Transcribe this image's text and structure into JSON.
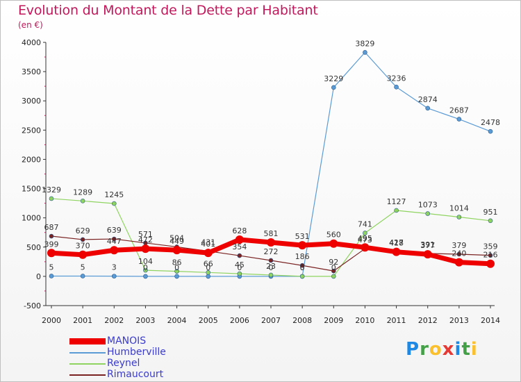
{
  "header": {
    "title": "Evolution du Montant de la Dette par Habitant",
    "unit": "(en €)"
  },
  "brand": {
    "text": "Proxiti"
  },
  "chart_data": {
    "type": "line",
    "categories": [
      "2000",
      "2001",
      "2002",
      "2003",
      "2004",
      "2005",
      "2006",
      "2007",
      "2008",
      "2009",
      "2010",
      "2011",
      "2012",
      "2013",
      "2014"
    ],
    "ylim": [
      -500,
      4000
    ],
    "yticks": [
      -500,
      0,
      500,
      1000,
      1500,
      2000,
      2500,
      3000,
      3500,
      4000
    ],
    "legend_position": "bottom-left",
    "series": [
      {
        "name": "MANOIS",
        "color": "#ee0000",
        "emphasis": true,
        "values": [
          399,
          370,
          447,
          472,
          449,
          401,
          628,
          581,
          531,
          560,
          495,
          418,
          377,
          240,
          216
        ],
        "labels": [
          "399",
          "370",
          "447",
          "472",
          "449",
          "401",
          "628",
          "581",
          "531",
          "560",
          "495",
          "418",
          "377",
          "240",
          "216"
        ]
      },
      {
        "name": "Humberville",
        "color": "#5b9bd5",
        "emphasis": false,
        "values": [
          5,
          5,
          3,
          0,
          0,
          0,
          0,
          0,
          0,
          3229,
          3829,
          3236,
          2874,
          2687,
          2478
        ],
        "labels": [
          "5",
          "5",
          "3",
          "0",
          "0",
          "0",
          "0",
          "0",
          "0",
          "3229",
          "3829",
          "3236",
          "2874",
          "2687",
          "2478"
        ]
      },
      {
        "name": "Reynel",
        "color": "#8fd460",
        "emphasis": false,
        "values": [
          1329,
          1289,
          1245,
          104,
          86,
          66,
          45,
          23,
          0,
          0,
          741,
          1127,
          1073,
          1014,
          951
        ],
        "labels": [
          "1329",
          "1289",
          "1245",
          "104",
          "86",
          "66",
          "45",
          "23",
          "0",
          "0",
          "741",
          "1127",
          "1073",
          "1014",
          "951"
        ]
      },
      {
        "name": "Rimaucourt",
        "color": "#7a2222",
        "emphasis": false,
        "values": [
          687,
          629,
          639,
          571,
          504,
          431,
          354,
          272,
          186,
          92,
          473,
          427,
          391,
          379,
          359
        ],
        "labels": [
          "687",
          "629",
          "639",
          "571",
          "504",
          "431",
          "354",
          "272",
          "186",
          "92",
          "473",
          "427",
          "391",
          "379",
          "359"
        ]
      }
    ]
  }
}
